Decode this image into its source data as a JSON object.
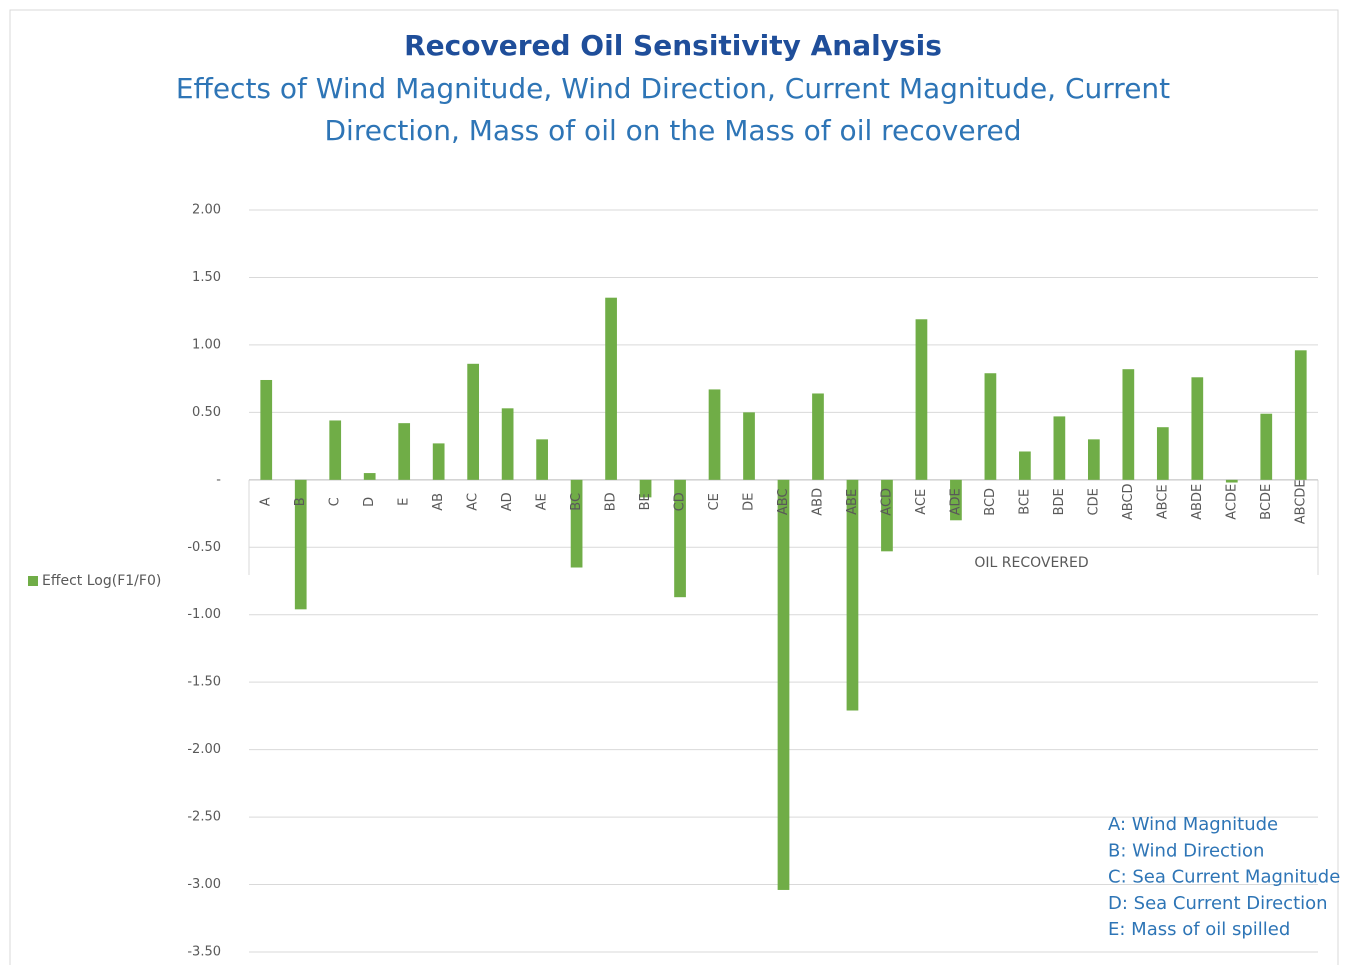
{
  "chart_data": {
    "type": "bar",
    "title": "Recovered Oil Sensitivity Analysis",
    "subtitle": [
      "Effects of Wind Magnitude, Wind Direction, Current Magnitude, Current",
      "Direction, Mass of oil on the Mass of oil recovered"
    ],
    "x_label": "OIL RECOVERED",
    "categories": [
      "A",
      "B",
      "C",
      "D",
      "E",
      "AB",
      "AC",
      "AD",
      "AE",
      "BC",
      "BD",
      "BE",
      "CD",
      "CE",
      "DE",
      "ABC",
      "ABD",
      "ABE",
      "ACD",
      "ACE",
      "ADE",
      "BCD",
      "BCE",
      "BDE",
      "CDE",
      "ABCD",
      "ABCE",
      "ABDE",
      "ACDE",
      "BCDE",
      "ABCDE"
    ],
    "series": [
      {
        "name": "Effect Log(F1/F0)",
        "color": "#70ad47",
        "values": [
          0.74,
          -0.96,
          0.44,
          0.05,
          0.42,
          0.27,
          0.86,
          0.53,
          0.3,
          -0.65,
          1.35,
          -0.13,
          -0.87,
          0.67,
          0.5,
          -3.04,
          0.64,
          -1.71,
          -0.53,
          1.19,
          -0.3,
          0.79,
          0.21,
          0.47,
          0.3,
          0.82,
          0.39,
          0.76,
          -0.02,
          0.49,
          0.96
        ]
      }
    ],
    "ylim": [
      -3.5,
      2
    ],
    "yticks": [
      {
        "value": 2,
        "label": "2.00"
      },
      {
        "value": 1.5,
        "label": "1.50"
      },
      {
        "value": 1,
        "label": "1.00"
      },
      {
        "value": 0.5,
        "label": "0.50"
      },
      {
        "value": 0,
        "label": "-"
      },
      {
        "value": -0.5,
        "label": "-0.50"
      },
      {
        "value": -1,
        "label": "-1.00"
      },
      {
        "value": -1.5,
        "label": "-1.50"
      },
      {
        "value": -2,
        "label": "-2.00"
      },
      {
        "value": -2.5,
        "label": "-2.50"
      },
      {
        "value": -3,
        "label": "-3.00"
      },
      {
        "value": -3.5,
        "label": "-3.50"
      }
    ],
    "grid": true,
    "legend": "left",
    "annotations": [
      "A: Wind Magnitude",
      "B: Wind Direction",
      "C: Sea Current Magnitude",
      "D: Sea Current Direction",
      "E: Mass of oil spilled"
    ]
  }
}
